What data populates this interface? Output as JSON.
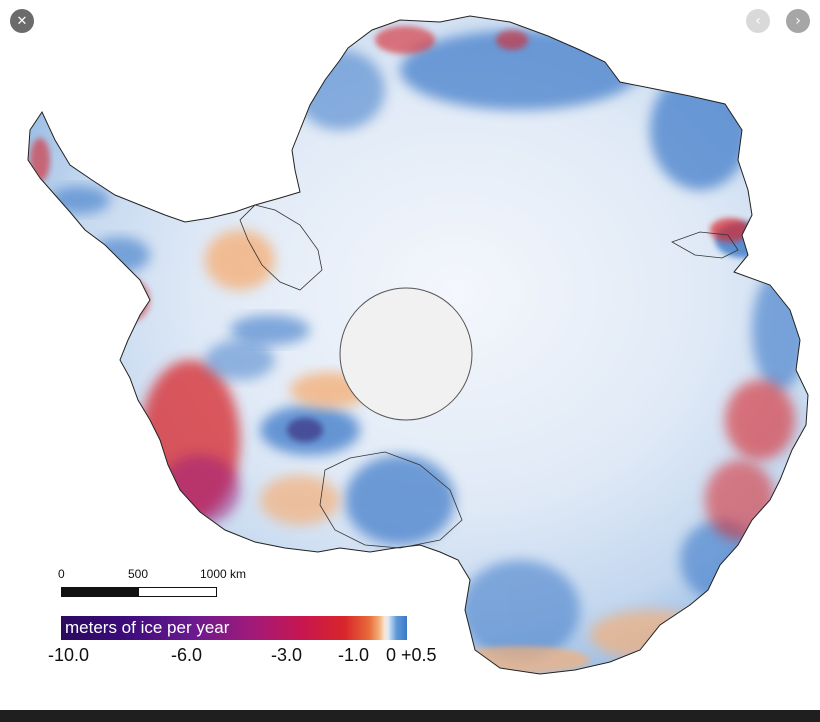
{
  "viewer": {
    "close_icon": "close-icon",
    "prev_icon": "chevron-left-icon",
    "next_icon": "chevron-right-icon",
    "close_glyph": "✕",
    "prev_glyph": "‹",
    "next_glyph": "›",
    "close_bg": "#6b6b6b",
    "prev_bg": "#d9d9d9",
    "next_bg": "#a6a6a6"
  },
  "scale_bar": {
    "label_zero": "0",
    "label_mid": "500",
    "label_max": "1000 km"
  },
  "legend": {
    "title": "meters of ice per year",
    "ticks": [
      "-10.0",
      "-6.0",
      "-3.0",
      "-1.0",
      "0 +0.5"
    ],
    "colors": {
      "strong_loss": "#2a0a5e",
      "moderate_loss": "#a01a7a",
      "loss": "#d8262a",
      "slight_loss": "#f4b07a",
      "neutral": "#f0f4fa",
      "gain": "#3a78c8"
    }
  },
  "map": {
    "subject": "Antarctica ice elevation change"
  }
}
